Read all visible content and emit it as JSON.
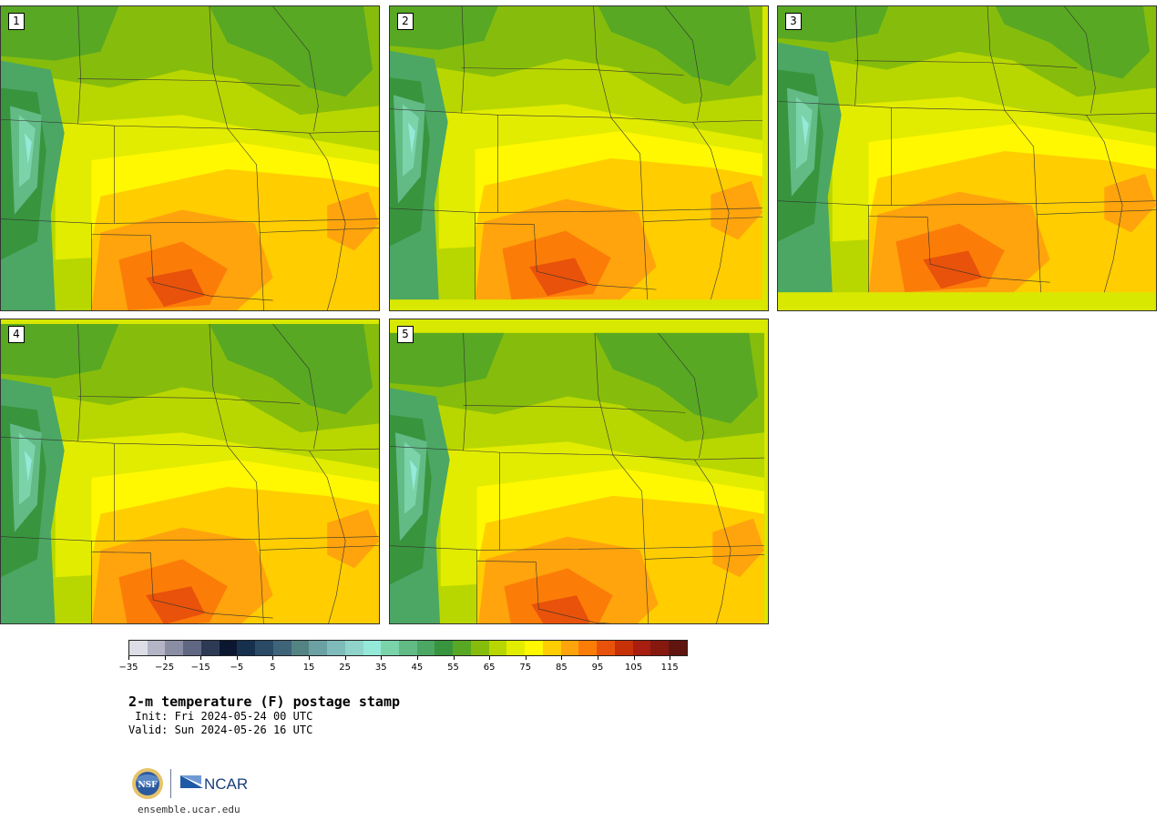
{
  "panels": [
    {
      "label": "1"
    },
    {
      "label": "2"
    },
    {
      "label": "3"
    },
    {
      "label": "4"
    },
    {
      "label": "5"
    }
  ],
  "colorbar": {
    "colors": [
      "#dcdde6",
      "#b3b4c5",
      "#8a8ea4",
      "#5f6782",
      "#2d3a56",
      "#0b1730",
      "#17304d",
      "#2a4a66",
      "#3d6478",
      "#548384",
      "#6ba0a4",
      "#7fbbba",
      "#8fd3cb",
      "#94e9d9",
      "#7bd3aa",
      "#62ba85",
      "#4ba763",
      "#38953d",
      "#58a823",
      "#86bd0c",
      "#b8d700",
      "#e2ec00",
      "#fff800",
      "#ffcd00",
      "#ffa40c",
      "#fb7d08",
      "#e9520a",
      "#c83008",
      "#a71e10",
      "#861810",
      "#611510"
    ],
    "tick_labels": [
      "−35",
      "−25",
      "−15",
      "−5",
      "5",
      "15",
      "25",
      "35",
      "45",
      "55",
      "65",
      "75",
      "85",
      "95",
      "105",
      "115"
    ]
  },
  "title": "2-m temperature (F) postage stamp",
  "init": " Init: Fri 2024-05-24 00 UTC",
  "valid": "Valid: Sun 2024-05-26 16 UTC",
  "logo": {
    "nsf": "NSF",
    "ncar": "NCAR"
  },
  "site": "ensemble.ucar.edu"
}
